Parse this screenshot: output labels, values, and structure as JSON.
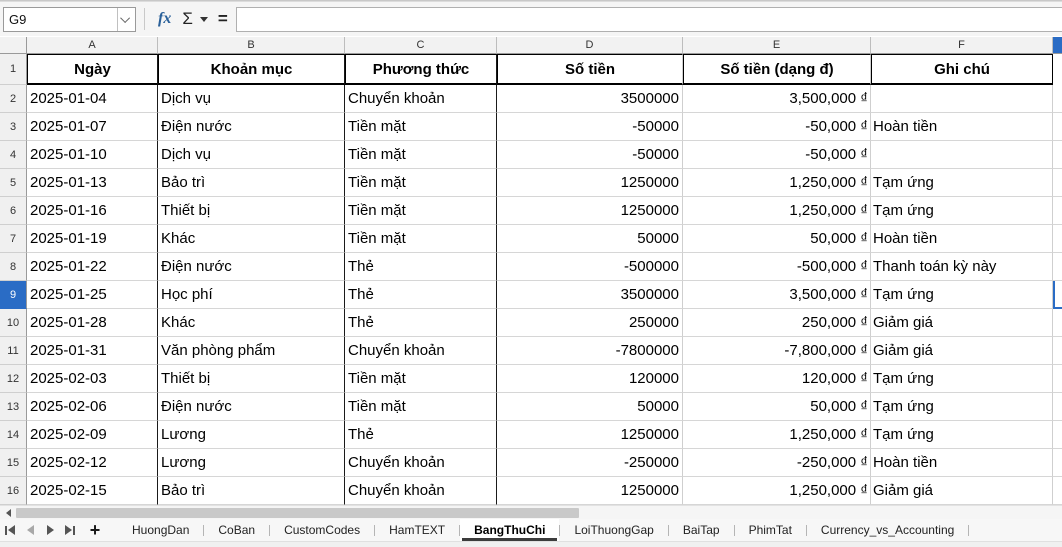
{
  "formula_bar": {
    "cell_reference": "G9",
    "formula_value": "",
    "function_wizard_label": "fx",
    "sum_label": "Σ",
    "equals_label": "="
  },
  "grid": {
    "column_letters": [
      "A",
      "B",
      "C",
      "D",
      "E",
      "F"
    ],
    "partial_selected_column": "G",
    "row_numbers": [
      1,
      2,
      3,
      4,
      5,
      6,
      7,
      8,
      9,
      10,
      11,
      12,
      13,
      14,
      15,
      16
    ],
    "selected": {
      "cell": "G9",
      "row_number": 9,
      "column_letter": "G"
    },
    "header_row": [
      "Ngày",
      "Khoản mục",
      "Phương thức",
      "Số tiền",
      "Số tiền (dạng đ)",
      "Ghi chú"
    ],
    "data_rows": [
      [
        "2025-01-04",
        "Dịch vụ",
        "Chuyển khoản",
        "3500000",
        "3,500,000 ₫",
        ""
      ],
      [
        "2025-01-07",
        "Điện nước",
        "Tiền mặt",
        "-50000",
        "-50,000 ₫",
        "Hoàn tiền"
      ],
      [
        "2025-01-10",
        "Dịch vụ",
        "Tiền mặt",
        "-50000",
        "-50,000 ₫",
        ""
      ],
      [
        "2025-01-13",
        "Bảo trì",
        "Tiền mặt",
        "1250000",
        "1,250,000 ₫",
        "Tạm ứng"
      ],
      [
        "2025-01-16",
        "Thiết bị",
        "Tiền mặt",
        "1250000",
        "1,250,000 ₫",
        "Tạm ứng"
      ],
      [
        "2025-01-19",
        "Khác",
        "Tiền mặt",
        "50000",
        "50,000 ₫",
        "Hoàn tiền"
      ],
      [
        "2025-01-22",
        "Điện nước",
        "Thẻ",
        "-500000",
        "-500,000 ₫",
        "Thanh toán kỳ này"
      ],
      [
        "2025-01-25",
        "Học phí",
        "Thẻ",
        "3500000",
        "3,500,000 ₫",
        "Tạm ứng"
      ],
      [
        "2025-01-28",
        "Khác",
        "Thẻ",
        "250000",
        "250,000 ₫",
        "Giảm giá"
      ],
      [
        "2025-01-31",
        "Văn phòng phẩm",
        "Chuyển khoản",
        "-7800000",
        "-7,800,000 ₫",
        "Giảm giá"
      ],
      [
        "2025-02-03",
        "Thiết bị",
        "Tiền mặt",
        "120000",
        "120,000 ₫",
        "Tạm ứng"
      ],
      [
        "2025-02-06",
        "Điện nước",
        "Tiền mặt",
        "50000",
        "50,000 ₫",
        "Tạm ứng"
      ],
      [
        "2025-02-09",
        "Lương",
        "Thẻ",
        "1250000",
        "1,250,000 ₫",
        "Tạm ứng"
      ],
      [
        "2025-02-12",
        "Lương",
        "Chuyển khoản",
        "-250000",
        "-250,000 ₫",
        "Hoàn tiền"
      ],
      [
        "2025-02-15",
        "Bảo trì",
        "Chuyển khoản",
        "1250000",
        "1,250,000 ₫",
        "Giảm giá"
      ]
    ]
  },
  "sheet_tabs": {
    "add_sheet_label": "+",
    "tabs": [
      {
        "label": "HuongDan",
        "active": false
      },
      {
        "label": "CoBan",
        "active": false
      },
      {
        "label": "CustomCodes",
        "active": false
      },
      {
        "label": "HamTEXT",
        "active": false
      },
      {
        "label": "BangThuChi",
        "active": true
      },
      {
        "label": "LoiThuongGap",
        "active": false
      },
      {
        "label": "BaiTap",
        "active": false
      },
      {
        "label": "PhimTat",
        "active": false
      },
      {
        "label": "Currency_vs_Accounting",
        "active": false
      }
    ]
  },
  "colors": {
    "selection_blue": "#2a6cc5",
    "fx_blue": "#2a6099",
    "grid_line": "#d6d6d6",
    "table_border": "#000000"
  }
}
